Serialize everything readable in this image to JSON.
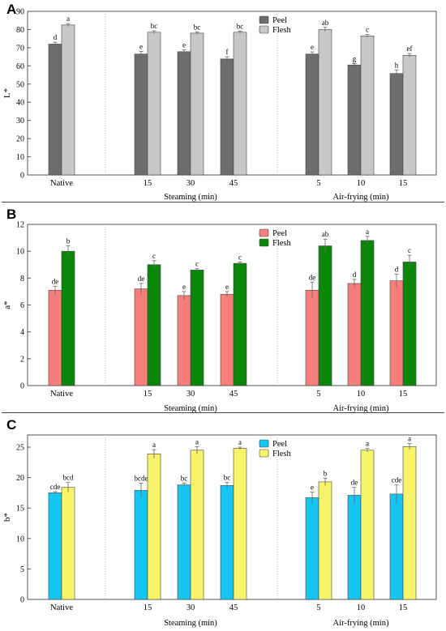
{
  "groups": [
    {
      "label": "Steaming (min)"
    },
    {
      "label": "Air-frying (min)"
    }
  ],
  "x_categories": [
    "Native",
    "15",
    "30",
    "45",
    "5",
    "10",
    "15"
  ],
  "chart_data": [
    {
      "panel": "A",
      "type": "bar",
      "ylabel": "L*",
      "ylim": [
        0,
        90
      ],
      "yticks": [
        0,
        10,
        20,
        30,
        40,
        50,
        60,
        70,
        80,
        90
      ],
      "legend_position": "top-center",
      "series": [
        {
          "name": "Peel",
          "color": "#6d6d6d",
          "values": [
            72.0,
            66.5,
            67.8,
            63.8,
            66.5,
            60.5,
            55.8
          ],
          "errors": [
            1.0,
            1.5,
            1.0,
            1.2,
            1.2,
            0.8,
            2.0
          ],
          "letters": [
            "d",
            "e",
            "e",
            "f",
            "e",
            "g",
            "h"
          ]
        },
        {
          "name": "Flesh",
          "color": "#c8c8c8",
          "values": [
            82.5,
            78.5,
            78.0,
            78.5,
            80.0,
            76.5,
            65.8
          ],
          "errors": [
            0.8,
            0.8,
            0.7,
            0.6,
            1.2,
            0.8,
            1.0
          ],
          "letters": [
            "a",
            "bc",
            "bc",
            "bc",
            "ab",
            "c",
            "ef"
          ]
        }
      ]
    },
    {
      "panel": "B",
      "type": "bar",
      "ylabel": "a*",
      "ylim": [
        0,
        12
      ],
      "yticks": [
        0,
        2,
        4,
        6,
        8,
        10,
        12
      ],
      "legend_position": "top-center",
      "series": [
        {
          "name": "Peel",
          "color": "#f77f7b",
          "values": [
            7.1,
            7.2,
            6.7,
            6.8,
            7.1,
            7.6,
            7.8
          ],
          "errors": [
            0.3,
            0.4,
            0.3,
            0.2,
            0.6,
            0.3,
            0.5
          ],
          "letters": [
            "de",
            "de",
            "e",
            "e",
            "de",
            "d",
            "d"
          ]
        },
        {
          "name": "Flesh",
          "color": "#0a870a",
          "values": [
            10.0,
            9.0,
            8.6,
            9.1,
            10.4,
            10.8,
            9.2
          ],
          "errors": [
            0.4,
            0.3,
            0.1,
            0.1,
            0.5,
            0.3,
            0.5
          ],
          "letters": [
            "b",
            "c",
            "c",
            "c",
            "ab",
            "a",
            "c"
          ]
        }
      ]
    },
    {
      "panel": "C",
      "type": "bar",
      "ylabel": "b*",
      "ylim": [
        0,
        27
      ],
      "yticks": [
        0,
        5,
        10,
        15,
        20,
        25
      ],
      "legend_position": "top-center",
      "series": [
        {
          "name": "Peel",
          "color": "#15c5f2",
          "values": [
            17.5,
            17.9,
            18.8,
            18.7,
            16.7,
            17.1,
            17.3
          ],
          "errors": [
            0.2,
            1.2,
            0.3,
            0.5,
            0.9,
            1.3,
            1.5
          ],
          "letters": [
            "cde",
            "bcde",
            "bc",
            "bc",
            "e",
            "de",
            "cde"
          ]
        },
        {
          "name": "Flesh",
          "color": "#f7f46a",
          "values": [
            18.4,
            23.9,
            24.5,
            24.8,
            19.3,
            24.5,
            25.1
          ],
          "errors": [
            0.8,
            0.7,
            0.6,
            0.2,
            0.6,
            0.3,
            0.5
          ],
          "letters": [
            "bcd",
            "a",
            "a",
            "a",
            "b",
            "a",
            "a"
          ]
        }
      ]
    }
  ]
}
